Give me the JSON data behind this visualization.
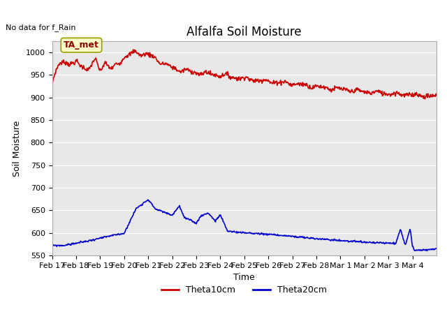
{
  "title": "Alfalfa Soil Moisture",
  "subtitle": "No data for f_Rain",
  "ylabel": "Soil Moisture",
  "xlabel": "Time",
  "ylim": [
    550,
    1025
  ],
  "yticks": [
    550,
    600,
    650,
    700,
    750,
    800,
    850,
    900,
    950,
    1000
  ],
  "fig_bg_color": "#ffffff",
  "plot_bg_color": "#e8e8e8",
  "legend_label1": "Theta10cm",
  "legend_label2": "Theta20cm",
  "legend_color1": "#cc0000",
  "legend_color2": "#0000cc",
  "ta_met_label": "TA_met",
  "xtick_labels": [
    "Feb 17",
    "Feb 18",
    "Feb 19",
    "Feb 20",
    "Feb 21",
    "Feb 22",
    "Feb 23",
    "Feb 24",
    "Feb 25",
    "Feb 26",
    "Feb 27",
    "Feb 28",
    "Mar 1",
    "Mar 2",
    "Mar 3",
    "Mar 4"
  ],
  "line1_color": "#cc0000",
  "line2_color": "#0000cc",
  "line_width": 1.2,
  "grid_color": "#ffffff",
  "title_fontsize": 12,
  "axis_fontsize": 9,
  "tick_fontsize": 8
}
